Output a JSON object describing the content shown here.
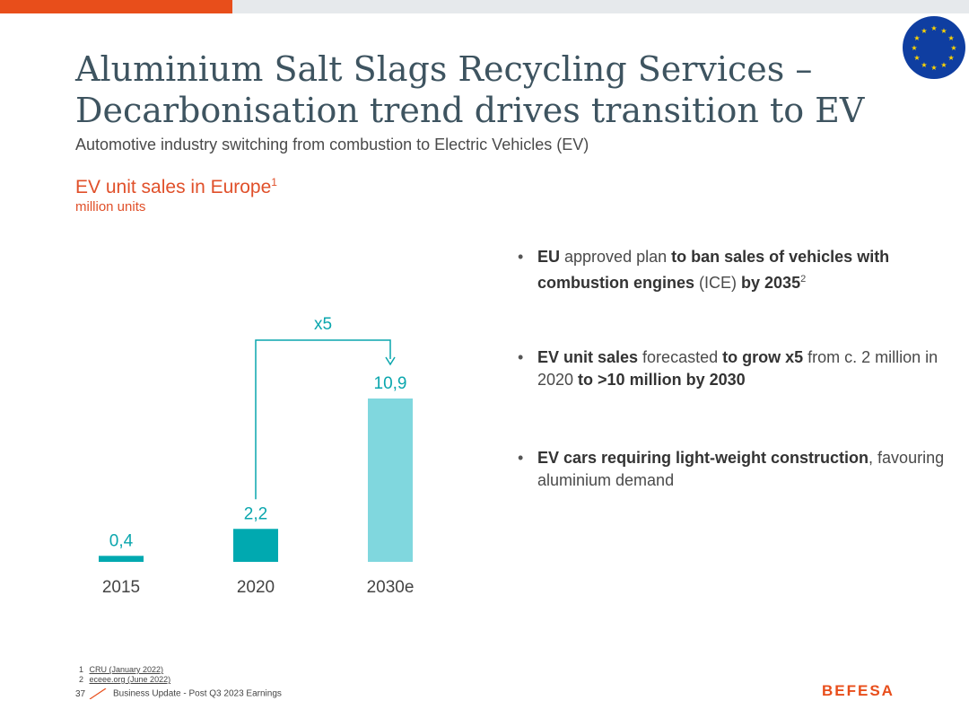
{
  "slide": {
    "title": "Aluminium Salt Slags Recycling Services – Decarbonisation trend drives transition to EV",
    "subtitle": "Automotive industry switching from combustion to Electric Vehicles (EV)",
    "page_number": "37",
    "footer_text": "Business Update - Post Q3 2023 Earnings",
    "logo_text": "BEFESA",
    "colors": {
      "accent": "#e84e1b",
      "title": "#3e5460",
      "bar_dark": "#00a9b0",
      "bar_light": "#80d7de",
      "eu_blue": "#0f3ea1",
      "eu_star": "#ffd500"
    }
  },
  "chart_header": {
    "title": "EV unit sales in Europe",
    "title_sup": "1",
    "unit": "million units"
  },
  "chart_data": {
    "type": "bar",
    "title": "EV unit sales in Europe",
    "ylabel": "million units",
    "categories": [
      "2015",
      "2020",
      "2030e"
    ],
    "values": [
      0.4,
      2.2,
      10.9
    ],
    "value_labels": [
      "0,4",
      "2,2",
      "10,9"
    ],
    "annotation": {
      "text": "x5",
      "from": "2020",
      "to": "2030e"
    }
  },
  "bullets": [
    {
      "segments": [
        {
          "text": "EU",
          "bold": true
        },
        {
          "text": " approved plan ",
          "bold": false
        },
        {
          "text": "to ban sales of vehicles with combustion engines",
          "bold": true
        },
        {
          "text": " (ICE) ",
          "bold": false
        },
        {
          "text": "by 2035",
          "bold": true
        }
      ],
      "sup": "2"
    },
    {
      "segments": [
        {
          "text": "EV unit sales",
          "bold": true
        },
        {
          "text": " forecasted ",
          "bold": false
        },
        {
          "text": "to grow x5",
          "bold": true
        },
        {
          "text": " from c. 2 million in 2020 ",
          "bold": false
        },
        {
          "text": "to >10 million by 2030",
          "bold": true
        }
      ]
    },
    {
      "segments": [
        {
          "text": "EV cars requiring light-weight construction",
          "bold": true
        },
        {
          "text": ", favouring aluminium demand",
          "bold": false
        }
      ]
    }
  ],
  "footnotes": [
    {
      "num": "1",
      "text": "CRU (January 2022)"
    },
    {
      "num": "2",
      "text": "eceee.org (June 2022)"
    }
  ]
}
